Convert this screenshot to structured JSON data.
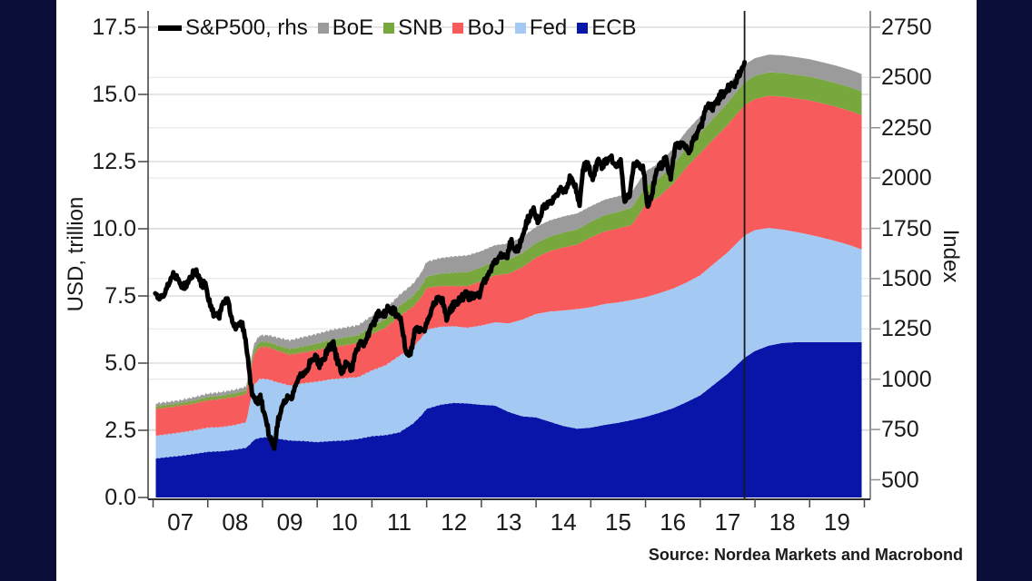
{
  "colors": {
    "page_bg": "#0b0e38",
    "panel_bg": "#ffffff",
    "grid_left": "#d6d6d6",
    "grid_right": "#e3e3e3",
    "axis_left": "#474747",
    "axis_right": "#919191",
    "axis_bottom": "#2e2e2e",
    "text": "#1a1a1a",
    "marker_line": "#1a1a1a",
    "stack_outline": "#000000"
  },
  "chart_data": {
    "type": "area",
    "subtype": "stacked-area-with-overlay-line",
    "title": "",
    "source": "Source: Nordea Markets and Macrobond",
    "left_axis": {
      "label": "USD, trillion",
      "tick_labels": [
        "0.0",
        "2.5",
        "5.0",
        "7.5",
        "10.0",
        "12.5",
        "15.0",
        "17.5"
      ],
      "ticks": [
        0,
        2.5,
        5,
        7.5,
        10,
        12.5,
        15,
        17.5
      ],
      "range": [
        0,
        17.5
      ]
    },
    "right_axis": {
      "label": "Index",
      "ticks": [
        500,
        750,
        1000,
        1250,
        1500,
        1750,
        2000,
        2250,
        2500,
        2750
      ],
      "range": [
        500,
        2750
      ]
    },
    "x_axis": {
      "tick_years": [
        2007,
        2008,
        2009,
        2010,
        2011,
        2012,
        2013,
        2014,
        2015,
        2016,
        2017,
        2018,
        2019,
        2020
      ],
      "year_labels": [
        "07",
        "08",
        "09",
        "10",
        "11",
        "12",
        "13",
        "14",
        "15",
        "16",
        "17",
        "18",
        "19"
      ],
      "range": [
        2006.91,
        2020.11
      ]
    },
    "forecast_marker_x": 2017.81,
    "legend": [
      {
        "label": "S&P500, rhs",
        "swatch": "line",
        "color": "#000000"
      },
      {
        "label": "BoE",
        "swatch": "square",
        "color": "#9b9b9b"
      },
      {
        "label": "SNB",
        "swatch": "square",
        "color": "#77a73d"
      },
      {
        "label": "BoJ",
        "swatch": "square",
        "color": "#f75b5c"
      },
      {
        "label": "Fed",
        "swatch": "square",
        "color": "#a4caf3"
      },
      {
        "label": "ECB",
        "swatch": "square",
        "color": "#0915a8"
      }
    ],
    "t": [
      2007.05,
      2007.25,
      2007.5,
      2007.75,
      2008.0,
      2008.25,
      2008.5,
      2008.7,
      2008.78,
      2008.85,
      2008.95,
      2009.1,
      2009.25,
      2009.5,
      2009.75,
      2010.0,
      2010.25,
      2010.5,
      2010.75,
      2011.0,
      2011.25,
      2011.5,
      2011.75,
      2011.9,
      2012.0,
      2012.25,
      2012.5,
      2012.75,
      2013.0,
      2013.25,
      2013.5,
      2013.75,
      2014.0,
      2014.25,
      2014.5,
      2014.75,
      2015.0,
      2015.25,
      2015.5,
      2015.75,
      2016.0,
      2016.25,
      2016.5,
      2016.75,
      2017.0,
      2017.25,
      2017.5,
      2017.81,
      2018.0,
      2018.25,
      2018.5,
      2018.75,
      2019.0,
      2019.25,
      2019.5,
      2019.75,
      2019.95
    ],
    "stack_unit": "USD trillion",
    "stack": [
      {
        "name": "ECB",
        "color": "#0915a8",
        "values": [
          1.45,
          1.5,
          1.55,
          1.62,
          1.7,
          1.72,
          1.78,
          1.85,
          2.0,
          2.15,
          2.22,
          2.25,
          2.2,
          2.12,
          2.1,
          2.06,
          2.1,
          2.12,
          2.18,
          2.28,
          2.32,
          2.42,
          2.75,
          3.05,
          3.3,
          3.45,
          3.52,
          3.5,
          3.45,
          3.42,
          3.18,
          3.02,
          2.98,
          2.82,
          2.66,
          2.56,
          2.6,
          2.7,
          2.78,
          2.88,
          3.0,
          3.15,
          3.32,
          3.55,
          3.8,
          4.2,
          4.6,
          5.2,
          5.45,
          5.65,
          5.75,
          5.78,
          5.78,
          5.78,
          5.78,
          5.78,
          5.78
        ]
      },
      {
        "name": "Fed",
        "color": "#a4caf3",
        "values": [
          0.85,
          0.85,
          0.87,
          0.88,
          0.9,
          0.9,
          0.92,
          0.95,
          1.6,
          2.05,
          2.2,
          2.15,
          2.1,
          2.05,
          2.15,
          2.25,
          2.3,
          2.32,
          2.3,
          2.45,
          2.6,
          2.85,
          2.85,
          2.88,
          2.95,
          2.9,
          2.85,
          2.82,
          2.95,
          3.1,
          3.3,
          3.6,
          3.85,
          4.1,
          4.3,
          4.45,
          4.48,
          4.5,
          4.48,
          4.47,
          4.45,
          4.45,
          4.45,
          4.45,
          4.47,
          4.5,
          4.52,
          4.55,
          4.5,
          4.38,
          4.22,
          4.1,
          4.0,
          3.88,
          3.75,
          3.6,
          3.45
        ]
      },
      {
        "name": "BoJ",
        "color": "#f75b5c",
        "values": [
          1.0,
          1.0,
          1.0,
          1.0,
          1.02,
          1.05,
          1.05,
          1.05,
          1.1,
          1.15,
          1.18,
          1.2,
          1.18,
          1.15,
          1.15,
          1.18,
          1.2,
          1.22,
          1.28,
          1.35,
          1.4,
          1.48,
          1.5,
          1.52,
          1.55,
          1.52,
          1.5,
          1.55,
          1.65,
          1.75,
          1.85,
          1.95,
          2.1,
          2.25,
          2.35,
          2.4,
          2.6,
          2.7,
          2.75,
          2.8,
          3.45,
          3.6,
          3.9,
          4.3,
          4.55,
          4.65,
          4.75,
          4.85,
          4.88,
          4.92,
          4.95,
          4.97,
          5.0,
          5.0,
          5.0,
          5.0,
          5.0
        ]
      },
      {
        "name": "SNB",
        "color": "#77a73d",
        "values": [
          0.1,
          0.1,
          0.1,
          0.11,
          0.12,
          0.12,
          0.13,
          0.13,
          0.15,
          0.18,
          0.19,
          0.19,
          0.2,
          0.21,
          0.22,
          0.24,
          0.27,
          0.29,
          0.28,
          0.3,
          0.32,
          0.38,
          0.4,
          0.41,
          0.42,
          0.46,
          0.5,
          0.52,
          0.52,
          0.52,
          0.52,
          0.53,
          0.54,
          0.54,
          0.55,
          0.56,
          0.58,
          0.6,
          0.62,
          0.64,
          0.66,
          0.68,
          0.7,
          0.72,
          0.75,
          0.78,
          0.82,
          0.85,
          0.86,
          0.87,
          0.88,
          0.88,
          0.88,
          0.88,
          0.88,
          0.88,
          0.88
        ]
      },
      {
        "name": "BoE",
        "color": "#9b9b9b",
        "values": [
          0.1,
          0.1,
          0.1,
          0.12,
          0.12,
          0.13,
          0.13,
          0.14,
          0.17,
          0.21,
          0.24,
          0.25,
          0.28,
          0.32,
          0.35,
          0.36,
          0.36,
          0.37,
          0.37,
          0.38,
          0.38,
          0.4,
          0.45,
          0.5,
          0.55,
          0.58,
          0.6,
          0.62,
          0.6,
          0.6,
          0.6,
          0.6,
          0.6,
          0.6,
          0.6,
          0.6,
          0.58,
          0.58,
          0.58,
          0.58,
          0.58,
          0.56,
          0.6,
          0.62,
          0.62,
          0.64,
          0.65,
          0.66,
          0.66,
          0.66,
          0.66,
          0.66,
          0.65,
          0.65,
          0.65,
          0.65,
          0.65
        ]
      }
    ],
    "line_series": {
      "name": "S&P500, rhs",
      "color": "#000000",
      "axis": "right",
      "x": [
        2007.04,
        2007.12,
        2007.21,
        2007.29,
        2007.37,
        2007.46,
        2007.54,
        2007.62,
        2007.71,
        2007.79,
        2007.87,
        2007.96,
        2008.04,
        2008.12,
        2008.21,
        2008.29,
        2008.37,
        2008.46,
        2008.54,
        2008.62,
        2008.71,
        2008.79,
        2008.87,
        2008.96,
        2009.04,
        2009.12,
        2009.21,
        2009.29,
        2009.37,
        2009.46,
        2009.54,
        2009.62,
        2009.71,
        2009.79,
        2009.87,
        2009.96,
        2010.04,
        2010.12,
        2010.21,
        2010.29,
        2010.37,
        2010.46,
        2010.54,
        2010.62,
        2010.71,
        2010.79,
        2010.87,
        2010.96,
        2011.04,
        2011.12,
        2011.21,
        2011.29,
        2011.37,
        2011.46,
        2011.54,
        2011.62,
        2011.71,
        2011.79,
        2011.87,
        2011.96,
        2012.04,
        2012.12,
        2012.21,
        2012.29,
        2012.37,
        2012.46,
        2012.54,
        2012.62,
        2012.71,
        2012.79,
        2012.87,
        2012.96,
        2013.04,
        2013.12,
        2013.21,
        2013.29,
        2013.37,
        2013.46,
        2013.54,
        2013.62,
        2013.71,
        2013.79,
        2013.87,
        2013.96,
        2014.04,
        2014.12,
        2014.21,
        2014.29,
        2014.37,
        2014.46,
        2014.54,
        2014.62,
        2014.71,
        2014.79,
        2014.87,
        2014.96,
        2015.04,
        2015.12,
        2015.21,
        2015.29,
        2015.37,
        2015.46,
        2015.54,
        2015.62,
        2015.71,
        2015.79,
        2015.87,
        2015.96,
        2016.04,
        2016.12,
        2016.21,
        2016.29,
        2016.37,
        2016.46,
        2016.54,
        2016.62,
        2016.71,
        2016.79,
        2016.87,
        2016.96,
        2017.04,
        2017.12,
        2017.21,
        2017.29,
        2017.37,
        2017.46,
        2017.54,
        2017.62,
        2017.71,
        2017.81
      ],
      "values": [
        1438,
        1407,
        1421,
        1482,
        1531,
        1503,
        1455,
        1474,
        1527,
        1549,
        1481,
        1468,
        1379,
        1331,
        1323,
        1386,
        1400,
        1280,
        1267,
        1283,
        1166,
        969,
        896,
        903,
        826,
        735,
        665,
        798,
        873,
        919,
        919,
        987,
        1021,
        1036,
        1096,
        1115,
        1074,
        1104,
        1169,
        1187,
        1089,
        1031,
        1102,
        1049,
        1141,
        1183,
        1181,
        1258,
        1286,
        1327,
        1326,
        1364,
        1345,
        1321,
        1292,
        1140,
        1131,
        1253,
        1247,
        1258,
        1312,
        1366,
        1408,
        1398,
        1310,
        1362,
        1379,
        1407,
        1441,
        1412,
        1416,
        1426,
        1498,
        1515,
        1569,
        1598,
        1631,
        1606,
        1686,
        1633,
        1682,
        1757,
        1806,
        1848,
        1783,
        1859,
        1872,
        1884,
        1924,
        1960,
        1931,
        2003,
        1972,
        1880,
        2068,
        2059,
        1995,
        2105,
        2068,
        2086,
        2107,
        2063,
        2104,
        1880,
        1920,
        2079,
        2080,
        2044,
        1850,
        1932,
        2060,
        2065,
        2097,
        2005,
        2174,
        2171,
        2168,
        2126,
        2199,
        2239,
        2279,
        2364,
        2363,
        2384,
        2412,
        2423,
        2470,
        2472,
        2519,
        2565
      ]
    }
  }
}
